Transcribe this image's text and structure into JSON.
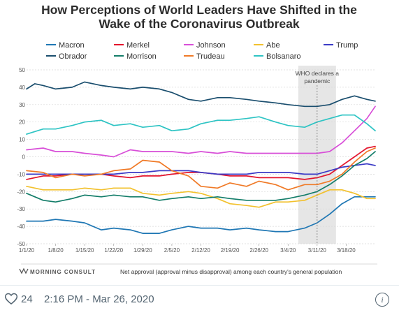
{
  "chart_data": {
    "type": "line",
    "title_line1": "How Perceptions of World Leaders Have Shifted in the",
    "title_line2": "Wake of the Coronavirus Outbreak",
    "xlabel": "",
    "ylabel": "",
    "ylim": [
      -50,
      50
    ],
    "yticks": [
      50,
      40,
      30,
      20,
      10,
      0,
      -10,
      -20,
      -30,
      -40,
      -50
    ],
    "x_tick_labels": [
      "1/1/20",
      "1/8/20",
      "1/15/20",
      "1/22/20",
      "1/29/20",
      "2/5/20",
      "2/12/20",
      "2/19/20",
      "2/26/20",
      "3/4/20",
      "3/11/20",
      "3/18/20"
    ],
    "x_start": "2020-01-01",
    "x_end": "2020-03-25",
    "grid": true,
    "legend_position": "top",
    "annotation": {
      "date": "2020-03-11",
      "line1": "WHO declares a",
      "line2": "pandemic",
      "shade_color": "#e6e6e6"
    },
    "footer_brand": "MORNING CONSULT",
    "footer_note": "Net approval (approval minus disapproval) among each country's general population",
    "series": [
      {
        "name": "Macron",
        "color": "#1f77b4",
        "points": [
          [
            "2020-01-01",
            -37
          ],
          [
            "2020-01-05",
            -37
          ],
          [
            "2020-01-08",
            -36
          ],
          [
            "2020-01-12",
            -37
          ],
          [
            "2020-01-15",
            -38
          ],
          [
            "2020-01-19",
            -42
          ],
          [
            "2020-01-22",
            -41
          ],
          [
            "2020-01-26",
            -42
          ],
          [
            "2020-01-29",
            -44
          ],
          [
            "2020-02-02",
            -44
          ],
          [
            "2020-02-05",
            -42
          ],
          [
            "2020-02-09",
            -40
          ],
          [
            "2020-02-12",
            -41
          ],
          [
            "2020-02-16",
            -41
          ],
          [
            "2020-02-19",
            -42
          ],
          [
            "2020-02-23",
            -41
          ],
          [
            "2020-02-26",
            -42
          ],
          [
            "2020-03-01",
            -43
          ],
          [
            "2020-03-04",
            -43
          ],
          [
            "2020-03-08",
            -41
          ],
          [
            "2020-03-11",
            -38
          ],
          [
            "2020-03-14",
            -33
          ],
          [
            "2020-03-17",
            -27
          ],
          [
            "2020-03-20",
            -23
          ],
          [
            "2020-03-23",
            -23
          ],
          [
            "2020-03-25",
            -23
          ]
        ]
      },
      {
        "name": "Merkel",
        "color": "#e3132c",
        "points": [
          [
            "2020-01-01",
            -13
          ],
          [
            "2020-01-05",
            -11
          ],
          [
            "2020-01-08",
            -11
          ],
          [
            "2020-01-12",
            -10
          ],
          [
            "2020-01-15",
            -10
          ],
          [
            "2020-01-19",
            -10
          ],
          [
            "2020-01-22",
            -11
          ],
          [
            "2020-01-26",
            -12
          ],
          [
            "2020-01-29",
            -11
          ],
          [
            "2020-02-02",
            -11
          ],
          [
            "2020-02-05",
            -10
          ],
          [
            "2020-02-09",
            -9
          ],
          [
            "2020-02-12",
            -9
          ],
          [
            "2020-02-16",
            -10
          ],
          [
            "2020-02-19",
            -11
          ],
          [
            "2020-02-23",
            -11
          ],
          [
            "2020-02-26",
            -12
          ],
          [
            "2020-03-01",
            -12
          ],
          [
            "2020-03-04",
            -12
          ],
          [
            "2020-03-08",
            -13
          ],
          [
            "2020-03-11",
            -12
          ],
          [
            "2020-03-14",
            -10
          ],
          [
            "2020-03-17",
            -5
          ],
          [
            "2020-03-20",
            0
          ],
          [
            "2020-03-23",
            5
          ],
          [
            "2020-03-25",
            6
          ]
        ]
      },
      {
        "name": "Johnson",
        "color": "#d84fd8",
        "points": [
          [
            "2020-01-01",
            4
          ],
          [
            "2020-01-05",
            5
          ],
          [
            "2020-01-08",
            3
          ],
          [
            "2020-01-12",
            3
          ],
          [
            "2020-01-15",
            2
          ],
          [
            "2020-01-19",
            1
          ],
          [
            "2020-01-22",
            0
          ],
          [
            "2020-01-26",
            4
          ],
          [
            "2020-01-29",
            3
          ],
          [
            "2020-02-02",
            3
          ],
          [
            "2020-02-05",
            3
          ],
          [
            "2020-02-09",
            2
          ],
          [
            "2020-02-12",
            3
          ],
          [
            "2020-02-16",
            2
          ],
          [
            "2020-02-19",
            3
          ],
          [
            "2020-02-23",
            2
          ],
          [
            "2020-02-26",
            2
          ],
          [
            "2020-03-01",
            2
          ],
          [
            "2020-03-04",
            2
          ],
          [
            "2020-03-08",
            2
          ],
          [
            "2020-03-11",
            2
          ],
          [
            "2020-03-14",
            3
          ],
          [
            "2020-03-17",
            8
          ],
          [
            "2020-03-20",
            15
          ],
          [
            "2020-03-23",
            22
          ],
          [
            "2020-03-25",
            29
          ]
        ]
      },
      {
        "name": "Abe",
        "color": "#f2c12e",
        "points": [
          [
            "2020-01-01",
            -17
          ],
          [
            "2020-01-05",
            -19
          ],
          [
            "2020-01-08",
            -19
          ],
          [
            "2020-01-12",
            -19
          ],
          [
            "2020-01-15",
            -18
          ],
          [
            "2020-01-19",
            -19
          ],
          [
            "2020-01-22",
            -18
          ],
          [
            "2020-01-26",
            -18
          ],
          [
            "2020-01-29",
            -21
          ],
          [
            "2020-02-02",
            -22
          ],
          [
            "2020-02-05",
            -21
          ],
          [
            "2020-02-09",
            -20
          ],
          [
            "2020-02-12",
            -21
          ],
          [
            "2020-02-16",
            -24
          ],
          [
            "2020-02-19",
            -27
          ],
          [
            "2020-02-23",
            -28
          ],
          [
            "2020-02-26",
            -29
          ],
          [
            "2020-03-01",
            -26
          ],
          [
            "2020-03-04",
            -26
          ],
          [
            "2020-03-08",
            -25
          ],
          [
            "2020-03-11",
            -22
          ],
          [
            "2020-03-14",
            -19
          ],
          [
            "2020-03-17",
            -19
          ],
          [
            "2020-03-20",
            -21
          ],
          [
            "2020-03-23",
            -24
          ],
          [
            "2020-03-25",
            -24
          ]
        ]
      },
      {
        "name": "Trump",
        "color": "#3b3bc6",
        "points": [
          [
            "2020-01-01",
            -10
          ],
          [
            "2020-01-05",
            -10
          ],
          [
            "2020-01-08",
            -10
          ],
          [
            "2020-01-12",
            -10
          ],
          [
            "2020-01-15",
            -10
          ],
          [
            "2020-01-19",
            -10
          ],
          [
            "2020-01-22",
            -10
          ],
          [
            "2020-01-26",
            -9
          ],
          [
            "2020-01-29",
            -9
          ],
          [
            "2020-02-02",
            -8
          ],
          [
            "2020-02-05",
            -8
          ],
          [
            "2020-02-09",
            -8
          ],
          [
            "2020-02-12",
            -9
          ],
          [
            "2020-02-16",
            -10
          ],
          [
            "2020-02-19",
            -10
          ],
          [
            "2020-02-23",
            -10
          ],
          [
            "2020-02-26",
            -9
          ],
          [
            "2020-03-01",
            -9
          ],
          [
            "2020-03-04",
            -9
          ],
          [
            "2020-03-08",
            -10
          ],
          [
            "2020-03-11",
            -10
          ],
          [
            "2020-03-14",
            -8
          ],
          [
            "2020-03-17",
            -6
          ],
          [
            "2020-03-20",
            -5
          ],
          [
            "2020-03-23",
            -4
          ],
          [
            "2020-03-25",
            -5
          ]
        ]
      },
      {
        "name": "Obrador",
        "color": "#1a4e6e",
        "points": [
          [
            "2020-01-01",
            39
          ],
          [
            "2020-01-03",
            42
          ],
          [
            "2020-01-05",
            41
          ],
          [
            "2020-01-08",
            39
          ],
          [
            "2020-01-12",
            40
          ],
          [
            "2020-01-15",
            43
          ],
          [
            "2020-01-19",
            41
          ],
          [
            "2020-01-22",
            40
          ],
          [
            "2020-01-26",
            39
          ],
          [
            "2020-01-29",
            40
          ],
          [
            "2020-02-02",
            39
          ],
          [
            "2020-02-05",
            37
          ],
          [
            "2020-02-09",
            33
          ],
          [
            "2020-02-12",
            32
          ],
          [
            "2020-02-16",
            34
          ],
          [
            "2020-02-19",
            34
          ],
          [
            "2020-02-23",
            33
          ],
          [
            "2020-02-26",
            32
          ],
          [
            "2020-03-01",
            31
          ],
          [
            "2020-03-04",
            30
          ],
          [
            "2020-03-08",
            29
          ],
          [
            "2020-03-11",
            29
          ],
          [
            "2020-03-14",
            30
          ],
          [
            "2020-03-17",
            33
          ],
          [
            "2020-03-20",
            35
          ],
          [
            "2020-03-23",
            33
          ],
          [
            "2020-03-25",
            32
          ]
        ]
      },
      {
        "name": "Morrison",
        "color": "#137d69",
        "points": [
          [
            "2020-01-01",
            -21
          ],
          [
            "2020-01-05",
            -25
          ],
          [
            "2020-01-08",
            -26
          ],
          [
            "2020-01-12",
            -24
          ],
          [
            "2020-01-15",
            -22
          ],
          [
            "2020-01-19",
            -23
          ],
          [
            "2020-01-22",
            -22
          ],
          [
            "2020-01-26",
            -23
          ],
          [
            "2020-01-29",
            -23
          ],
          [
            "2020-02-02",
            -25
          ],
          [
            "2020-02-05",
            -24
          ],
          [
            "2020-02-09",
            -23
          ],
          [
            "2020-02-12",
            -24
          ],
          [
            "2020-02-16",
            -23
          ],
          [
            "2020-02-19",
            -24
          ],
          [
            "2020-02-23",
            -25
          ],
          [
            "2020-02-26",
            -25
          ],
          [
            "2020-03-01",
            -25
          ],
          [
            "2020-03-04",
            -24
          ],
          [
            "2020-03-08",
            -22
          ],
          [
            "2020-03-11",
            -20
          ],
          [
            "2020-03-14",
            -16
          ],
          [
            "2020-03-17",
            -11
          ],
          [
            "2020-03-20",
            -5
          ],
          [
            "2020-03-23",
            -1
          ],
          [
            "2020-03-25",
            3
          ]
        ]
      },
      {
        "name": "Trudeau",
        "color": "#f07a27",
        "points": [
          [
            "2020-01-01",
            -8
          ],
          [
            "2020-01-05",
            -9
          ],
          [
            "2020-01-08",
            -12
          ],
          [
            "2020-01-12",
            -10
          ],
          [
            "2020-01-15",
            -11
          ],
          [
            "2020-01-19",
            -10
          ],
          [
            "2020-01-22",
            -8
          ],
          [
            "2020-01-26",
            -7
          ],
          [
            "2020-01-29",
            -2
          ],
          [
            "2020-02-02",
            -3
          ],
          [
            "2020-02-05",
            -8
          ],
          [
            "2020-02-09",
            -11
          ],
          [
            "2020-02-12",
            -17
          ],
          [
            "2020-02-16",
            -18
          ],
          [
            "2020-02-19",
            -15
          ],
          [
            "2020-02-23",
            -17
          ],
          [
            "2020-02-26",
            -14
          ],
          [
            "2020-03-01",
            -16
          ],
          [
            "2020-03-04",
            -19
          ],
          [
            "2020-03-08",
            -16
          ],
          [
            "2020-03-11",
            -16
          ],
          [
            "2020-03-14",
            -14
          ],
          [
            "2020-03-17",
            -10
          ],
          [
            "2020-03-20",
            -3
          ],
          [
            "2020-03-23",
            3
          ],
          [
            "2020-03-25",
            5
          ]
        ]
      },
      {
        "name": "Bolsanaro",
        "color": "#2ec4c4",
        "points": [
          [
            "2020-01-01",
            13
          ],
          [
            "2020-01-05",
            16
          ],
          [
            "2020-01-08",
            16
          ],
          [
            "2020-01-12",
            18
          ],
          [
            "2020-01-15",
            20
          ],
          [
            "2020-01-19",
            21
          ],
          [
            "2020-01-22",
            18
          ],
          [
            "2020-01-26",
            19
          ],
          [
            "2020-01-29",
            17
          ],
          [
            "2020-02-02",
            18
          ],
          [
            "2020-02-05",
            15
          ],
          [
            "2020-02-09",
            16
          ],
          [
            "2020-02-12",
            19
          ],
          [
            "2020-02-16",
            21
          ],
          [
            "2020-02-19",
            21
          ],
          [
            "2020-02-23",
            22
          ],
          [
            "2020-02-26",
            23
          ],
          [
            "2020-03-01",
            20
          ],
          [
            "2020-03-04",
            18
          ],
          [
            "2020-03-08",
            17
          ],
          [
            "2020-03-11",
            20
          ],
          [
            "2020-03-14",
            22
          ],
          [
            "2020-03-17",
            24
          ],
          [
            "2020-03-20",
            24
          ],
          [
            "2020-03-23",
            19
          ],
          [
            "2020-03-25",
            15
          ]
        ]
      }
    ]
  },
  "tweet": {
    "like_count": "24",
    "timestamp": "2:16 PM - Mar 26, 2020",
    "info_glyph": "i"
  }
}
